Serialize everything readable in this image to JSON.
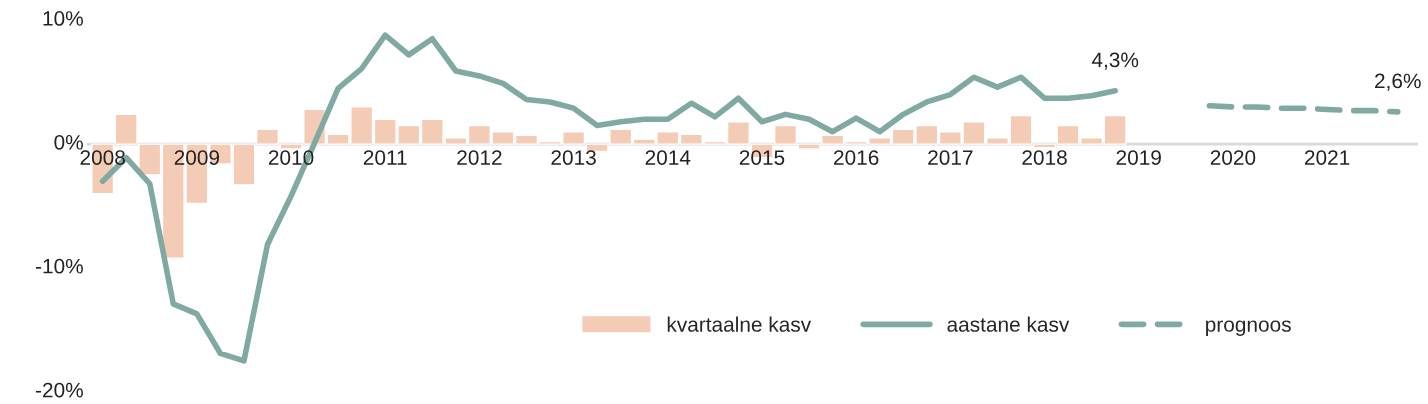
{
  "chart_data": {
    "type": "bar",
    "categories": [
      "2008",
      null,
      null,
      null,
      "2009",
      null,
      null,
      null,
      "2010",
      null,
      null,
      null,
      "2011",
      null,
      null,
      null,
      "2012",
      null,
      null,
      null,
      "2013",
      null,
      null,
      null,
      "2014",
      null,
      null,
      null,
      "2015",
      null,
      null,
      null,
      "2016",
      null,
      null,
      null,
      "2017",
      null,
      null,
      null,
      "2018",
      null,
      null,
      null,
      "2019",
      null,
      null,
      null,
      "2020",
      null,
      null,
      null,
      "2021",
      null,
      null,
      null
    ],
    "series": [
      {
        "name": "kvartaalne kasv",
        "color": "#f4cbb4",
        "values": [
          -4.0,
          2.4,
          -2.5,
          -9.2,
          -4.8,
          -1.6,
          -3.3,
          1.2,
          -0.4,
          2.8,
          0.8,
          3.0,
          2.0,
          1.5,
          2.0,
          0.5,
          1.5,
          1.0,
          0.7,
          0.2,
          1.0,
          -0.6,
          1.2,
          0.4,
          1.0,
          0.8,
          0.2,
          1.8,
          -1.1,
          1.5,
          -0.4,
          0.7,
          0.2,
          0.5,
          1.2,
          1.5,
          1.0,
          1.8,
          0.5,
          2.3,
          -0.3,
          1.5,
          0.5,
          2.3,
          null,
          null,
          null,
          null,
          null,
          null,
          null,
          null,
          null,
          null,
          null,
          null
        ]
      },
      {
        "name": "aastane kasv",
        "type": "line",
        "line_style": "solid",
        "color": "#7fa9a2",
        "values": [
          -3.0,
          -1.1,
          -3.2,
          -12.9,
          -13.7,
          -16.9,
          -17.5,
          -8.1,
          -4.2,
          0.1,
          4.5,
          6.1,
          8.8,
          7.2,
          8.5,
          5.9,
          5.5,
          4.9,
          3.6,
          3.4,
          2.9,
          1.5,
          1.8,
          2.0,
          2.0,
          3.3,
          2.2,
          3.7,
          1.8,
          2.4,
          2.0,
          1.0,
          2.1,
          1.0,
          2.4,
          3.4,
          4.0,
          5.4,
          4.6,
          5.4,
          3.7,
          3.7,
          3.9,
          4.3,
          null,
          null,
          null,
          null,
          null,
          null,
          null,
          null,
          null,
          null,
          null,
          null
        ],
        "value_labels": [
          null,
          null,
          null,
          null,
          null,
          null,
          null,
          null,
          null,
          null,
          null,
          null,
          null,
          null,
          null,
          null,
          null,
          null,
          null,
          null,
          null,
          null,
          null,
          null,
          null,
          null,
          null,
          null,
          null,
          null,
          null,
          null,
          null,
          null,
          null,
          null,
          null,
          null,
          null,
          null,
          null,
          null,
          null,
          "4,3%",
          null,
          null,
          null,
          null,
          null,
          null,
          null,
          null,
          null,
          null,
          null,
          null
        ]
      },
      {
        "name": "prognoos",
        "type": "line",
        "line_style": "dashed",
        "color": "#7fa9a2",
        "values": [
          null,
          null,
          null,
          null,
          null,
          null,
          null,
          null,
          null,
          null,
          null,
          null,
          null,
          null,
          null,
          null,
          null,
          null,
          null,
          null,
          null,
          null,
          null,
          null,
          null,
          null,
          null,
          null,
          null,
          null,
          null,
          null,
          null,
          null,
          null,
          null,
          null,
          null,
          null,
          null,
          null,
          null,
          null,
          null,
          null,
          null,
          null,
          3.1,
          3.0,
          3.0,
          2.9,
          2.9,
          2.8,
          2.7,
          2.7,
          2.6
        ],
        "value_labels": [
          null,
          null,
          null,
          null,
          null,
          null,
          null,
          null,
          null,
          null,
          null,
          null,
          null,
          null,
          null,
          null,
          null,
          null,
          null,
          null,
          null,
          null,
          null,
          null,
          null,
          null,
          null,
          null,
          null,
          null,
          null,
          null,
          null,
          null,
          null,
          null,
          null,
          null,
          null,
          null,
          null,
          null,
          null,
          null,
          null,
          null,
          null,
          null,
          null,
          null,
          null,
          null,
          null,
          null,
          null,
          "2,6%"
        ]
      }
    ],
    "ylim": [
      -20,
      10
    ],
    "yticks": [
      {
        "value": -20,
        "label": "-20%"
      },
      {
        "value": -10,
        "label": "-10%"
      },
      {
        "value": 0,
        "label": "0%"
      },
      {
        "value": 10,
        "label": "10%"
      }
    ],
    "grid": false,
    "legend": "bottom right"
  }
}
